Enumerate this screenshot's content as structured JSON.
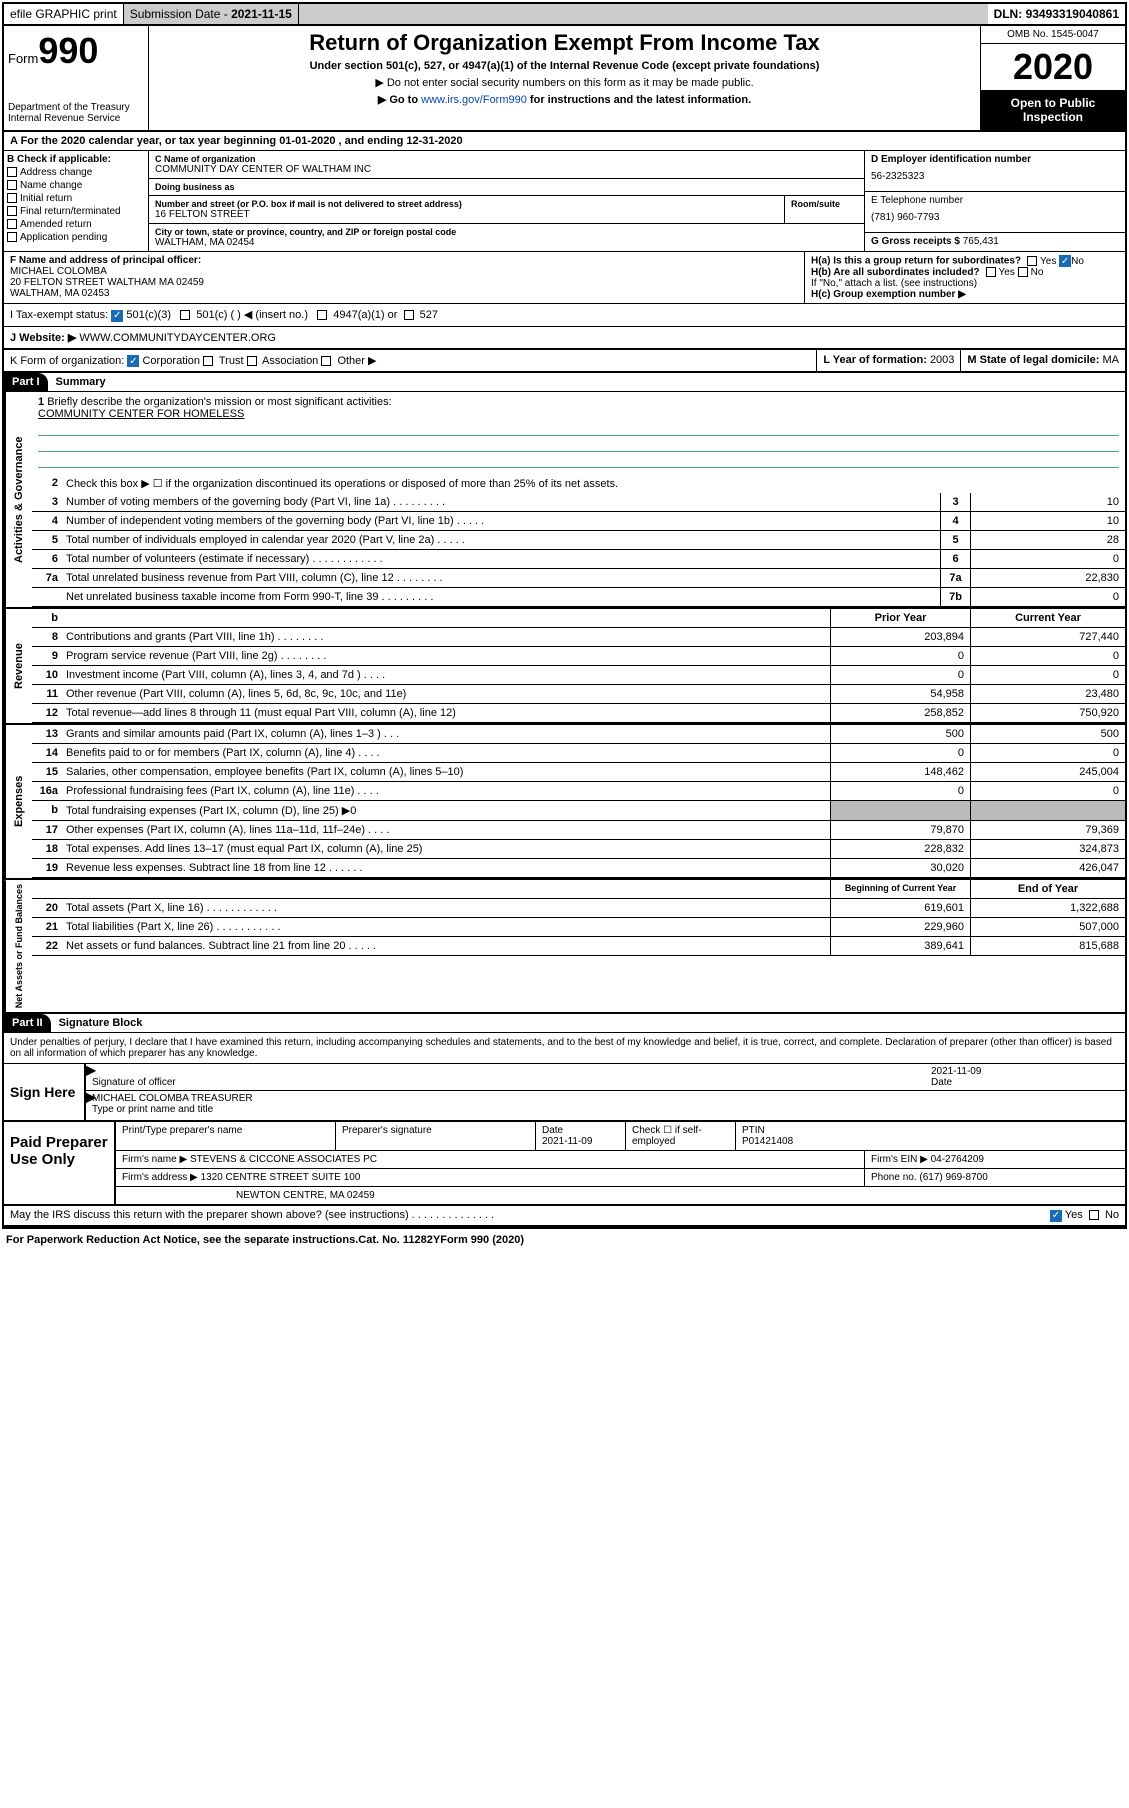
{
  "topbar": {
    "efile": "efile GRAPHIC print",
    "subdate_lbl": "Submission Date - ",
    "subdate": "2021-11-15",
    "dln_lbl": "DLN: ",
    "dln": "93493319040861"
  },
  "header": {
    "form_word": "Form",
    "form_num": "990",
    "dept": "Department of the Treasury\nInternal Revenue Service",
    "title": "Return of Organization Exempt From Income Tax",
    "subtitle": "Under section 501(c), 527, or 4947(a)(1) of the Internal Revenue Code (except private foundations)",
    "note1": "▶ Do not enter social security numbers on this form as it may be made public.",
    "note2_pre": "▶ Go to ",
    "note2_link": "www.irs.gov/Form990",
    "note2_post": " for instructions and the latest information.",
    "omb": "OMB No. 1545-0047",
    "year": "2020",
    "inspection": "Open to Public Inspection"
  },
  "period": {
    "text": "A For the 2020 calendar year, or tax year beginning 01-01-2020    , and ending 12-31-2020"
  },
  "colB": {
    "label": "B Check if applicable:",
    "items": [
      "Address change",
      "Name change",
      "Initial return",
      "Final return/terminated",
      "Amended return",
      "Application pending"
    ]
  },
  "colC": {
    "name_lbl": "C Name of organization",
    "name": "COMMUNITY DAY CENTER OF WALTHAM INC",
    "dba_lbl": "Doing business as",
    "dba": "",
    "street_lbl": "Number and street (or P.O. box if mail is not delivered to street address)",
    "room_lbl": "Room/suite",
    "street": "16 FELTON STREET",
    "city_lbl": "City or town, state or province, country, and ZIP or foreign postal code",
    "city": "WALTHAM, MA  02454"
  },
  "colD": {
    "ein_lbl": "D Employer identification number",
    "ein": "56-2325323",
    "phone_lbl": "E Telephone number",
    "phone": "(781) 960-7793",
    "gross_lbl": "G Gross receipts $ ",
    "gross": "765,431"
  },
  "rowF": {
    "lbl": "F Name and address of principal officer:",
    "name": "MICHAEL COLOMBA",
    "addr1": "20 FELTON STREET WALTHAM MA 02459",
    "addr2": "WALTHAM, MA  02453"
  },
  "rowH": {
    "ha": "H(a)  Is this a group return for subordinates?",
    "hb": "H(b)  Are all subordinates included?",
    "hb_note": "If \"No,\" attach a list. (see instructions)",
    "hc": "H(c)  Group exemption number ▶",
    "yes": "Yes",
    "no": "No"
  },
  "rowI": {
    "lbl": "I   Tax-exempt status:",
    "opt1": "501(c)(3)",
    "opt2": "501(c) (   ) ◀ (insert no.)",
    "opt3": "4947(a)(1) or",
    "opt4": "527"
  },
  "rowJ": {
    "lbl": "J   Website: ▶",
    "val": "WWW.COMMUNITYDAYCENTER.ORG"
  },
  "rowK": {
    "lbl": "K Form of organization:",
    "opts": [
      "Corporation",
      "Trust",
      "Association",
      "Other ▶"
    ],
    "year_lbl": "L Year of formation: ",
    "year": "2003",
    "state_lbl": "M State of legal domicile: ",
    "state": "MA"
  },
  "part1": {
    "label": "Part I",
    "title": "Summary"
  },
  "governance": {
    "tab": "Activities & Governance",
    "l1": "Briefly describe the organization's mission or most significant activities:",
    "l1v": "COMMUNITY CENTER FOR HOMELESS",
    "l2": "Check this box ▶ ☐  if the organization discontinued its operations or disposed of more than 25% of its net assets.",
    "lines": [
      {
        "n": "3",
        "d": "Number of voting members of the governing body (Part VI, line 1a)   .   .   .   .   .   .   .   .   .",
        "b": "3",
        "v": "10"
      },
      {
        "n": "4",
        "d": "Number of independent voting members of the governing body (Part VI, line 1b)  .   .   .   .   .",
        "b": "4",
        "v": "10"
      },
      {
        "n": "5",
        "d": "Total number of individuals employed in calendar year 2020 (Part V, line 2a)   .   .   .   .   .",
        "b": "5",
        "v": "28"
      },
      {
        "n": "6",
        "d": "Total number of volunteers (estimate if necessary)   .   .   .   .   .   .   .   .   .   .   .   .",
        "b": "6",
        "v": "0"
      },
      {
        "n": "7a",
        "d": "Total unrelated business revenue from Part VIII, column (C), line 12  .   .   .   .   .   .   .   .",
        "b": "7a",
        "v": "22,830"
      },
      {
        "n": "",
        "d": "Net unrelated business taxable income from Form 990-T, line 39   .   .   .   .   .   .   .   .   .",
        "b": "7b",
        "v": "0"
      }
    ]
  },
  "revenue": {
    "tab": "Revenue",
    "hdr_b": "b",
    "hdr_prior": "Prior Year",
    "hdr_curr": "Current Year",
    "lines": [
      {
        "n": "8",
        "d": "Contributions and grants (Part VIII, line 1h)   .   .   .   .   .   .   .   .",
        "p": "203,894",
        "c": "727,440"
      },
      {
        "n": "9",
        "d": "Program service revenue (Part VIII, line 2g)   .   .   .   .   .   .   .   .",
        "p": "0",
        "c": "0"
      },
      {
        "n": "10",
        "d": "Investment income (Part VIII, column (A), lines 3, 4, and 7d )   .   .   .   .",
        "p": "0",
        "c": "0"
      },
      {
        "n": "11",
        "d": "Other revenue (Part VIII, column (A), lines 5, 6d, 8c, 9c, 10c, and 11e)",
        "p": "54,958",
        "c": "23,480"
      },
      {
        "n": "12",
        "d": "Total revenue—add lines 8 through 11 (must equal Part VIII, column (A), line 12)",
        "p": "258,852",
        "c": "750,920"
      }
    ]
  },
  "expenses": {
    "tab": "Expenses",
    "lines": [
      {
        "n": "13",
        "d": "Grants and similar amounts paid (Part IX, column (A), lines 1–3 )   .   .   .",
        "p": "500",
        "c": "500"
      },
      {
        "n": "14",
        "d": "Benefits paid to or for members (Part IX, column (A), line 4)   .   .   .   .",
        "p": "0",
        "c": "0"
      },
      {
        "n": "15",
        "d": "Salaries, other compensation, employee benefits (Part IX, column (A), lines 5–10)",
        "p": "148,462",
        "c": "245,004"
      },
      {
        "n": "16a",
        "d": "Professional fundraising fees (Part IX, column (A), line 11e)   .   .   .   .",
        "p": "0",
        "c": "0"
      },
      {
        "n": "b",
        "d": "Total fundraising expenses (Part IX, column (D), line 25) ▶0",
        "p": "",
        "c": "",
        "shade": true
      },
      {
        "n": "17",
        "d": "Other expenses (Part IX, column (A), lines 11a–11d, 11f–24e)   .   .   .   .",
        "p": "79,870",
        "c": "79,369"
      },
      {
        "n": "18",
        "d": "Total expenses. Add lines 13–17 (must equal Part IX, column (A), line 25)",
        "p": "228,832",
        "c": "324,873"
      },
      {
        "n": "19",
        "d": "Revenue less expenses. Subtract line 18 from line 12   .   .   .   .   .   .",
        "p": "30,020",
        "c": "426,047"
      }
    ]
  },
  "netassets": {
    "tab": "Net Assets or Fund Balances",
    "hdr_begin": "Beginning of Current Year",
    "hdr_end": "End of Year",
    "lines": [
      {
        "n": "20",
        "d": "Total assets (Part X, line 16)   .   .   .   .   .   .   .   .   .   .   .   .",
        "p": "619,601",
        "c": "1,322,688"
      },
      {
        "n": "21",
        "d": "Total liabilities (Part X, line 26)   .   .   .   .   .   .   .   .   .   .   .",
        "p": "229,960",
        "c": "507,000"
      },
      {
        "n": "22",
        "d": "Net assets or fund balances. Subtract line 21 from line 20  .   .   .   .   .",
        "p": "389,641",
        "c": "815,688"
      }
    ]
  },
  "part2": {
    "label": "Part II",
    "title": "Signature Block"
  },
  "perjury": "Under penalties of perjury, I declare that I have examined this return, including accompanying schedules and statements, and to the best of my knowledge and belief, it is true, correct, and complete. Declaration of preparer (other than officer) is based on all information of which preparer has any knowledge.",
  "sign": {
    "left": "Sign Here",
    "sig_lbl": "Signature of officer",
    "date": "2021-11-09",
    "date_lbl": "Date",
    "name": "MICHAEL COLOMBA  TREASURER",
    "name_lbl": "Type or print name and title"
  },
  "prep": {
    "left": "Paid Preparer Use Only",
    "r1": {
      "c1": "Print/Type preparer's name",
      "c2": "Preparer's signature",
      "c3": "Date\n2021-11-09",
      "c4": "Check ☐  if self-employed",
      "c5": "PTIN\nP01421408"
    },
    "r2": {
      "c1": "Firm's name      ▶ STEVENS & CICCONE ASSOCIATES PC",
      "c2": "Firm's EIN ▶ 04-2764209"
    },
    "r3": {
      "c1": "Firm's address ▶ 1320 CENTRE STREET SUITE 100",
      "c2": "Phone no. (617) 969-8700"
    },
    "r4": {
      "c1": "NEWTON CENTRE, MA  02459"
    }
  },
  "discuss": {
    "q": "May the IRS discuss this return with the preparer shown above? (see instructions)   .   .   .   .   .   .   .   .   .   .   .   .   .   .",
    "yes": "Yes",
    "no": "No"
  },
  "footer": {
    "left": "For Paperwork Reduction Act Notice, see the separate instructions.",
    "mid": "Cat. No. 11282Y",
    "right": "Form 990 (2020)"
  }
}
